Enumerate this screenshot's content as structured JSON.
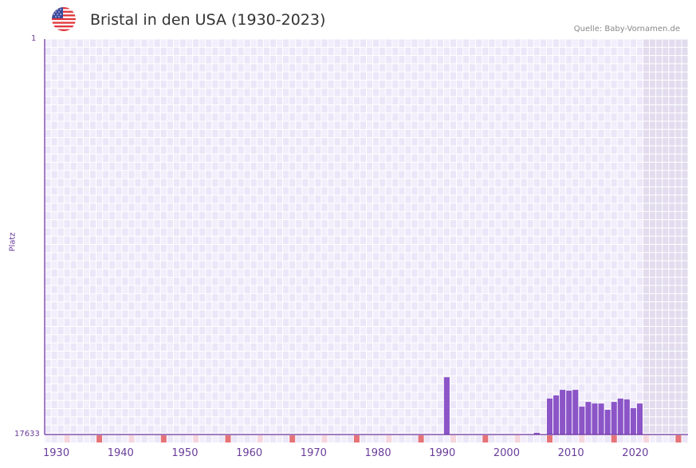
{
  "header": {
    "title": "Bristal in den USA (1930-2023)",
    "source": "Quelle: Baby-Vornamen.de",
    "flag_icon": "us-flag-icon"
  },
  "colors": {
    "bar": "#8b55c8",
    "axis": "#6a2d9a",
    "grid_bg_a": "#f2eefb",
    "grid_bg_b": "#ebe6f8",
    "future_bg": "#e2dcee",
    "decade_marker": "#e57378",
    "halfdecade_marker": "#f5d6de"
  },
  "chart_data": {
    "type": "bar",
    "title": "Bristal in den USA (1930-2023)",
    "xlabel": "",
    "ylabel": "Platz",
    "y_inverted": true,
    "ylim": [
      17633,
      1
    ],
    "y_ticks": [
      "1",
      "17633"
    ],
    "x_ticks": [
      "1930",
      "1940",
      "1950",
      "1960",
      "1970",
      "1980",
      "1990",
      "2000",
      "2010",
      "2020"
    ],
    "x_range": [
      1930,
      2029
    ],
    "grid": true,
    "legend": null,
    "categories": [
      1992,
      2006,
      2008,
      2009,
      2010,
      2011,
      2012,
      2013,
      2014,
      2015,
      2016,
      2017,
      2018,
      2019,
      2020,
      2021,
      2022
    ],
    "values": [
      15080,
      17560,
      16030,
      15890,
      15640,
      15680,
      15640,
      16390,
      16180,
      16250,
      16250,
      16530,
      16180,
      16030,
      16070,
      16460,
      16250
    ]
  },
  "axis": {
    "y_top_label": "1",
    "y_bottom_label": "17633",
    "y_title": "Platz"
  }
}
